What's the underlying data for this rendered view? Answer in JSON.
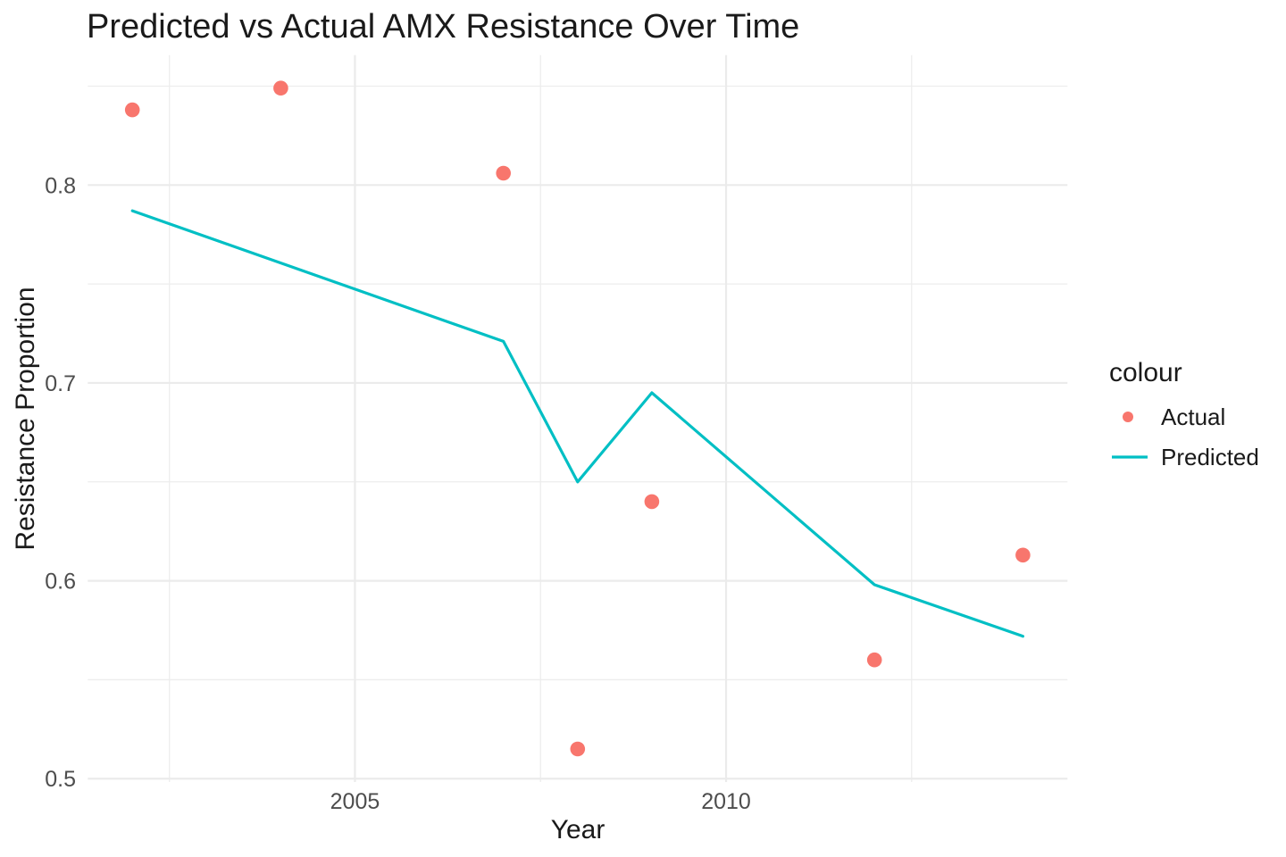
{
  "page": {
    "background_color": "#FFFFFF"
  },
  "chart_data": {
    "type": "line",
    "title": "Predicted vs Actual AMX Resistance Over Time",
    "xlabel": "Year",
    "ylabel": "Resistance Proportion",
    "grid": true,
    "grid_colors": {
      "major": "#EBEBEB",
      "minor": "#EDEDED"
    },
    "text_colors": {
      "title": "#1A1A1A",
      "axis_title": "#1A1A1A",
      "tick_label": "#4D4D4D",
      "legend_title": "#1A1A1A",
      "legend_label": "#1A1A1A"
    },
    "axes": {
      "x": {
        "range": [
          2001.4,
          2014.6
        ],
        "major_ticks": [
          {
            "value": 2005,
            "label": "2005"
          },
          {
            "value": 2010,
            "label": "2010"
          }
        ],
        "minor_ticks": [
          2002.5,
          2007.5,
          2012.5
        ]
      },
      "y": {
        "range": [
          0.4983,
          0.8657
        ],
        "major_ticks": [
          {
            "value": 0.5,
            "label": "0.5"
          },
          {
            "value": 0.6,
            "label": "0.6"
          },
          {
            "value": 0.7,
            "label": "0.7"
          },
          {
            "value": 0.8,
            "label": "0.8"
          }
        ],
        "minor_ticks": [
          0.55,
          0.65,
          0.75,
          0.85
        ]
      }
    },
    "legend": {
      "title": "colour",
      "position": "right",
      "entries": [
        {
          "label": "Actual",
          "marker": "point",
          "color": "#F8766D"
        },
        {
          "label": "Predicted",
          "marker": "line",
          "color": "#00BFC4"
        }
      ]
    },
    "series": [
      {
        "name": "Actual",
        "mode": "points",
        "color": "#F8766D",
        "points": [
          [
            2002,
            0.838
          ],
          [
            2004,
            0.849
          ],
          [
            2007,
            0.806
          ],
          [
            2008,
            0.515
          ],
          [
            2009,
            0.64
          ],
          [
            2012,
            0.56
          ],
          [
            2014,
            0.613
          ]
        ]
      },
      {
        "name": "Predicted",
        "mode": "line",
        "color": "#00BFC4",
        "points": [
          [
            2002,
            0.787
          ],
          [
            2007,
            0.721
          ],
          [
            2008,
            0.65
          ],
          [
            2009,
            0.695
          ],
          [
            2012,
            0.598
          ],
          [
            2014,
            0.572
          ]
        ]
      }
    ]
  }
}
